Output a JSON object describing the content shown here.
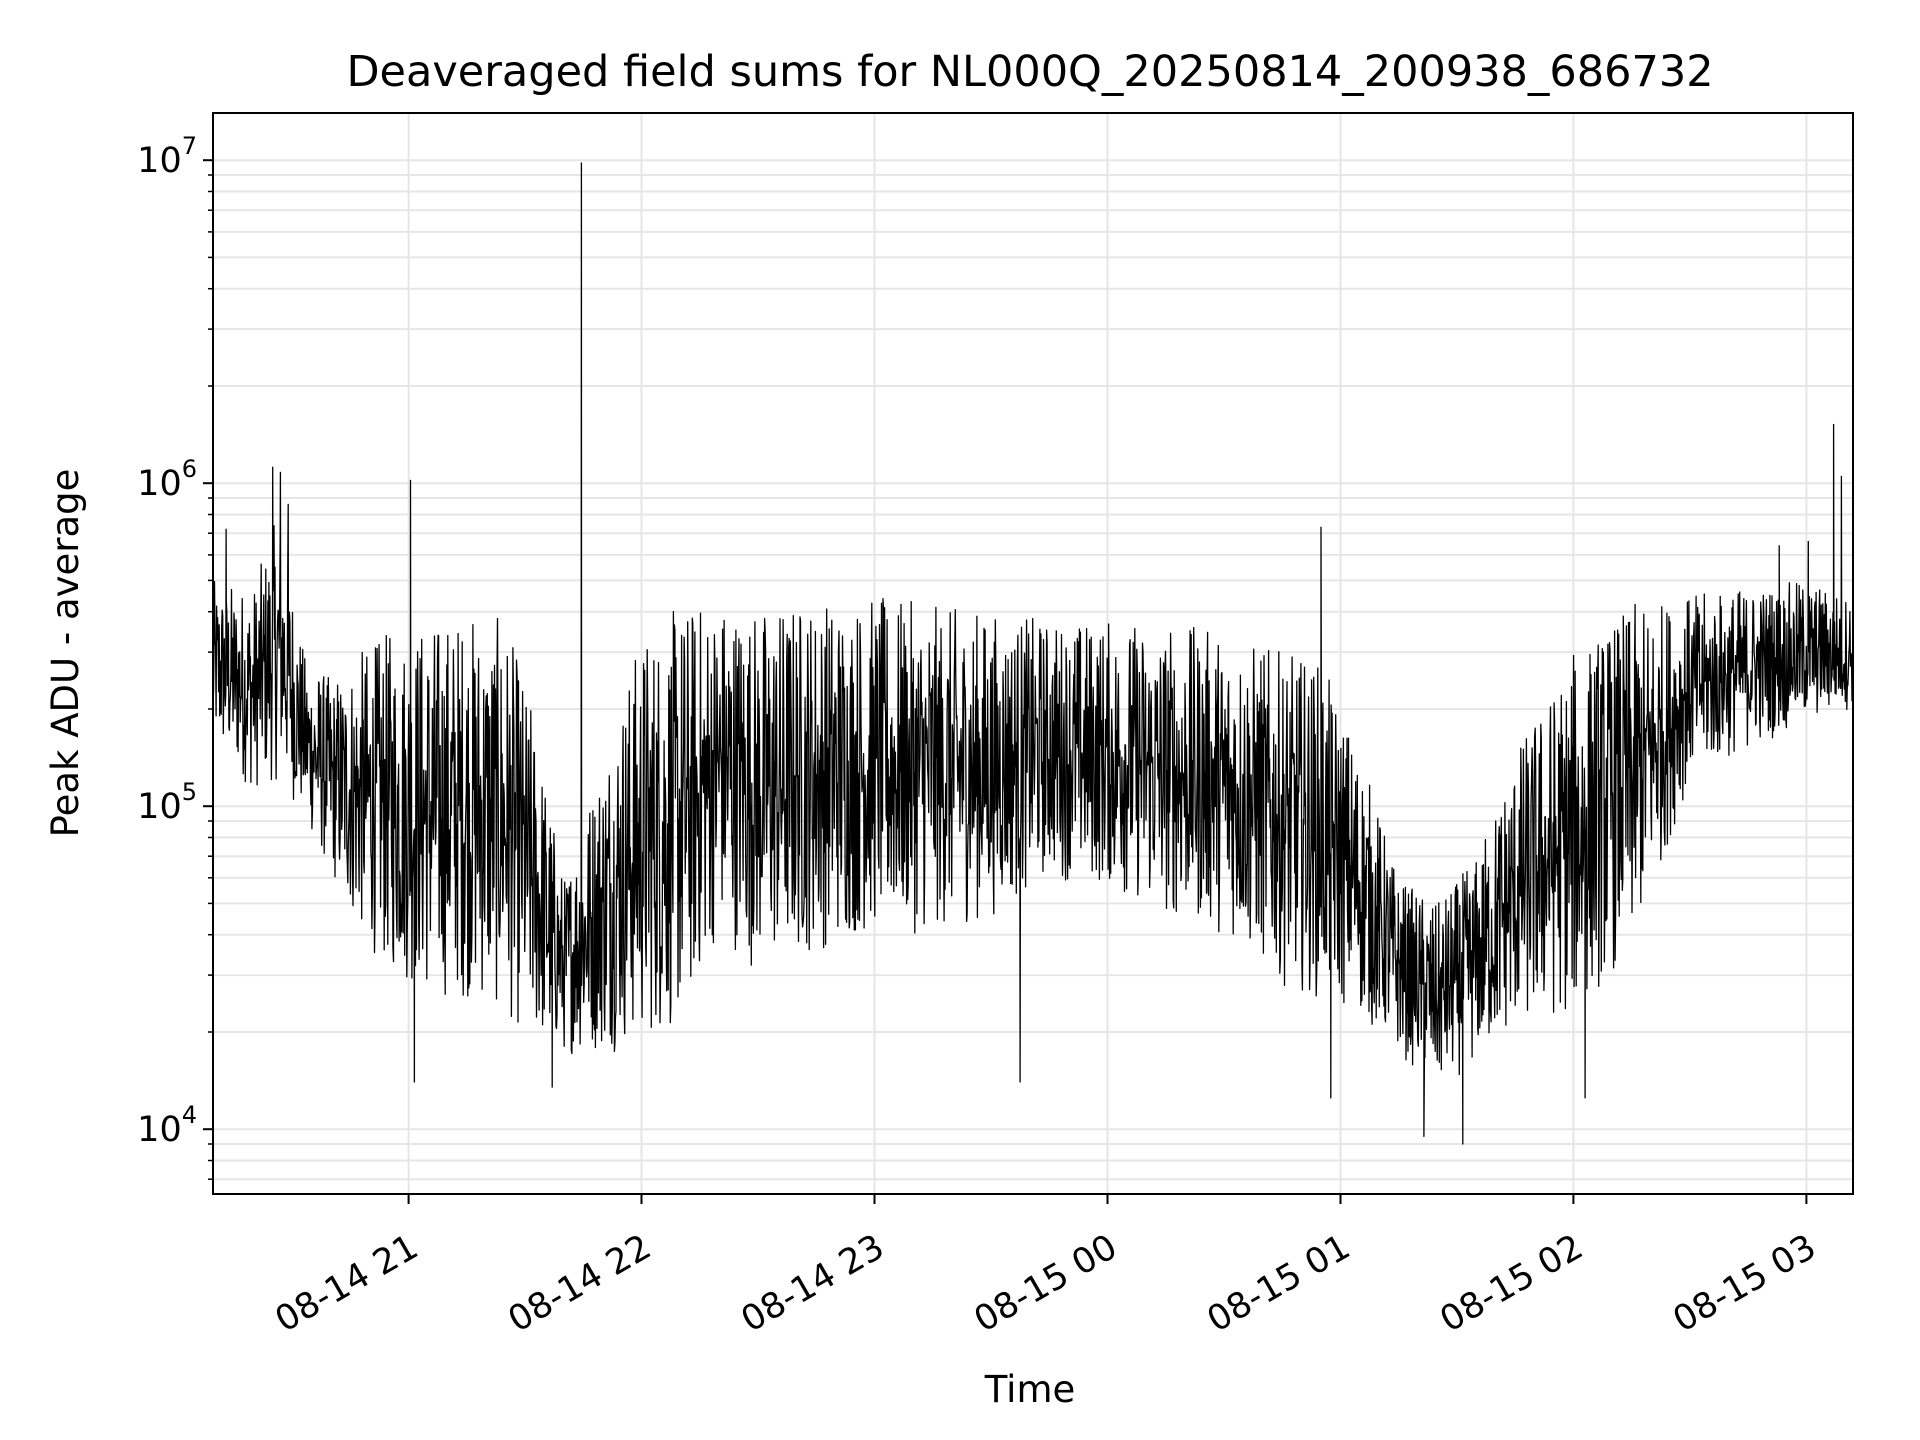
{
  "chart_data": {
    "type": "line",
    "title": "Deaveraged field sums for NL000Q_20250814_200938_686732",
    "xlabel": "Time",
    "ylabel": "Peak ADU - average",
    "xscale": "time",
    "yscale": "log",
    "xlim": [
      "2025-08-14T20:09:38",
      "2025-08-15T03:12:00"
    ],
    "ylim": [
      6300,
      14000000
    ],
    "grid": true,
    "legend": "none",
    "line_color": "#000000",
    "x_ticks": [
      {
        "t": "2025-08-14T21:00:00",
        "label": "08-14 21"
      },
      {
        "t": "2025-08-14T22:00:00",
        "label": "08-14 22"
      },
      {
        "t": "2025-08-14T23:00:00",
        "label": "08-14 23"
      },
      {
        "t": "2025-08-15T00:00:00",
        "label": "08-15 00"
      },
      {
        "t": "2025-08-15T01:00:00",
        "label": "08-15 01"
      },
      {
        "t": "2025-08-15T02:00:00",
        "label": "08-15 02"
      },
      {
        "t": "2025-08-15T03:00:00",
        "label": "08-15 03"
      }
    ],
    "y_ticks": [
      {
        "value": 10000,
        "base": "10",
        "exp": "4"
      },
      {
        "value": 100000,
        "base": "10",
        "exp": "5"
      },
      {
        "value": 1000000,
        "base": "10",
        "exp": "6"
      },
      {
        "value": 10000000,
        "base": "10",
        "exp": "7"
      }
    ],
    "series": [
      {
        "envelope": [
          {
            "t": "2025-08-14T20:09:38",
            "lo": 150000,
            "hi": 500000
          },
          {
            "t": "2025-08-14T20:20:00",
            "lo": 110000,
            "hi": 480000
          },
          {
            "t": "2025-08-14T20:27:00",
            "lo": 120000,
            "hi": 850000
          },
          {
            "t": "2025-08-14T20:33:00",
            "lo": 90000,
            "hi": 300000
          },
          {
            "t": "2025-08-14T20:40:00",
            "lo": 60000,
            "hi": 250000
          },
          {
            "t": "2025-08-14T20:47:00",
            "lo": 40000,
            "hi": 300000
          },
          {
            "t": "2025-08-14T20:55:00",
            "lo": 30000,
            "hi": 350000
          },
          {
            "t": "2025-08-14T21:05:00",
            "lo": 25000,
            "hi": 380000
          },
          {
            "t": "2025-08-14T21:15:00",
            "lo": 25000,
            "hi": 400000
          },
          {
            "t": "2025-08-14T21:25:00",
            "lo": 22000,
            "hi": 380000
          },
          {
            "t": "2025-08-14T21:32:00",
            "lo": 18000,
            "hi": 200000
          },
          {
            "t": "2025-08-14T21:40:00",
            "lo": 17000,
            "hi": 60000
          },
          {
            "t": "2025-08-14T21:50:00",
            "lo": 17000,
            "hi": 150000
          },
          {
            "t": "2025-08-14T22:00:00",
            "lo": 18000,
            "hi": 350000
          },
          {
            "t": "2025-08-14T22:10:00",
            "lo": 20000,
            "hi": 420000
          },
          {
            "t": "2025-08-14T22:20:00",
            "lo": 40000,
            "hi": 450000
          },
          {
            "t": "2025-08-14T22:30:00",
            "lo": 30000,
            "hi": 420000
          },
          {
            "t": "2025-08-14T22:45:00",
            "lo": 35000,
            "hi": 450000
          },
          {
            "t": "2025-08-14T23:00:00",
            "lo": 40000,
            "hi": 450000
          },
          {
            "t": "2025-08-14T23:15:00",
            "lo": 40000,
            "hi": 420000
          },
          {
            "t": "2025-08-14T23:30:00",
            "lo": 45000,
            "hi": 400000
          },
          {
            "t": "2025-08-14T23:45:00",
            "lo": 60000,
            "hi": 380000
          },
          {
            "t": "2025-08-15T00:00:00",
            "lo": 55000,
            "hi": 380000
          },
          {
            "t": "2025-08-15T00:15:00",
            "lo": 45000,
            "hi": 370000
          },
          {
            "t": "2025-08-15T00:30:00",
            "lo": 40000,
            "hi": 350000
          },
          {
            "t": "2025-08-15T00:45:00",
            "lo": 28000,
            "hi": 300000
          },
          {
            "t": "2025-08-15T00:55:00",
            "lo": 25000,
            "hi": 280000
          },
          {
            "t": "2025-08-15T01:05:00",
            "lo": 22000,
            "hi": 150000
          },
          {
            "t": "2025-08-15T01:15:00",
            "lo": 17000,
            "hi": 60000
          },
          {
            "t": "2025-08-15T01:25:00",
            "lo": 13000,
            "hi": 50000
          },
          {
            "t": "2025-08-15T01:35:00",
            "lo": 16000,
            "hi": 70000
          },
          {
            "t": "2025-08-15T01:45:00",
            "lo": 20000,
            "hi": 150000
          },
          {
            "t": "2025-08-15T02:00:00",
            "lo": 22000,
            "hi": 300000
          },
          {
            "t": "2025-08-15T02:15:00",
            "lo": 35000,
            "hi": 420000
          },
          {
            "t": "2025-08-15T02:30:00",
            "lo": 120000,
            "hi": 450000
          },
          {
            "t": "2025-08-15T02:45:00",
            "lo": 150000,
            "hi": 480000
          },
          {
            "t": "2025-08-15T03:00:00",
            "lo": 180000,
            "hi": 500000
          },
          {
            "t": "2025-08-15T03:12:00",
            "lo": 200000,
            "hi": 450000
          }
        ],
        "spikes": [
          {
            "t": "2025-08-14T20:13:00",
            "value": 720000
          },
          {
            "t": "2025-08-14T20:25:00",
            "value": 1120000
          },
          {
            "t": "2025-08-14T20:27:00",
            "value": 1080000
          },
          {
            "t": "2025-08-14T20:29:00",
            "value": 860000
          },
          {
            "t": "2025-08-14T21:00:30",
            "value": 1020000
          },
          {
            "t": "2025-08-14T21:44:30",
            "value": 9800000
          },
          {
            "t": "2025-08-15T00:55:00",
            "value": 730000
          },
          {
            "t": "2025-08-15T02:53:00",
            "value": 640000
          },
          {
            "t": "2025-08-15T03:00:30",
            "value": 660000
          },
          {
            "t": "2025-08-15T03:07:00",
            "value": 1520000
          },
          {
            "t": "2025-08-15T03:09:00",
            "value": 1050000
          },
          {
            "t": "2025-08-14T21:01:30",
            "value": 14000
          },
          {
            "t": "2025-08-14T21:37:00",
            "value": 13500
          },
          {
            "t": "2025-08-14T23:37:30",
            "value": 14000
          },
          {
            "t": "2025-08-15T00:57:30",
            "value": 12500
          },
          {
            "t": "2025-08-15T01:21:30",
            "value": 9500
          },
          {
            "t": "2025-08-15T01:31:30",
            "value": 9000
          },
          {
            "t": "2025-08-15T02:03:00",
            "value": 12500
          }
        ]
      }
    ]
  }
}
